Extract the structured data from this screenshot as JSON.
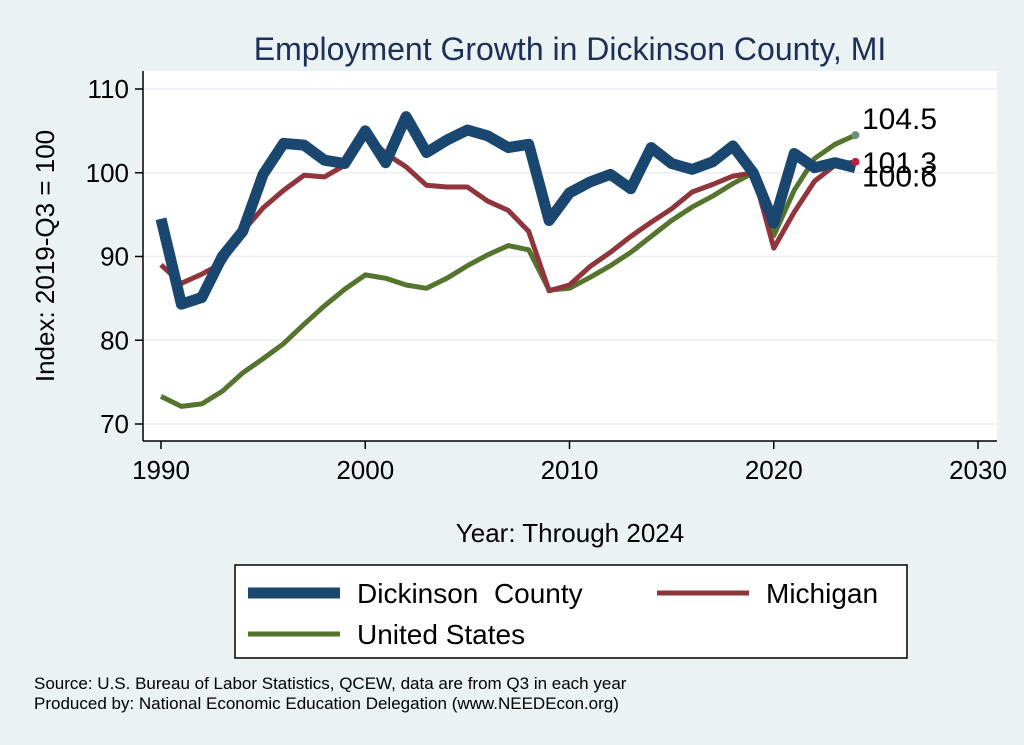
{
  "chart_data": {
    "type": "line",
    "title": "Employment Growth in Dickinson County, MI",
    "xlabel": "Year: Through 2024",
    "ylabel": "Index: 2019-Q3 = 100",
    "xlim": [
      1990,
      2030
    ],
    "ylim": [
      70,
      110
    ],
    "xticks": [
      1990,
      2000,
      2010,
      2020,
      2030
    ],
    "yticks": [
      70,
      80,
      90,
      100,
      110
    ],
    "grid": true,
    "legend_position": "bottom",
    "x": [
      1990,
      1991,
      1992,
      1993,
      1994,
      1995,
      1996,
      1997,
      1998,
      1999,
      2000,
      2001,
      2002,
      2003,
      2004,
      2005,
      2006,
      2007,
      2008,
      2009,
      2010,
      2011,
      2012,
      2013,
      2014,
      2015,
      2016,
      2017,
      2018,
      2019,
      2020,
      2021,
      2022,
      2023,
      2024
    ],
    "series": [
      {
        "name": "Dickinson  County",
        "color": "#1a476f",
        "values": [
          94.5,
          84.3,
          85.1,
          90.0,
          93.0,
          99.8,
          103.5,
          103.3,
          101.5,
          101.1,
          105.0,
          101.2,
          106.7,
          102.4,
          103.9,
          105.1,
          104.4,
          103.0,
          103.4,
          94.3,
          97.6,
          98.9,
          99.8,
          98.1,
          103.0,
          101.1,
          100.4,
          101.3,
          103.2,
          100.0,
          94.0,
          102.3,
          100.6,
          101.2,
          100.6
        ],
        "end_label": "100.6"
      },
      {
        "name": "Michigan",
        "color": "#90353b",
        "values": [
          89.0,
          86.8,
          87.9,
          89.2,
          93.0,
          95.8,
          97.9,
          99.7,
          99.5,
          100.9,
          104.7,
          102.3,
          100.7,
          98.5,
          98.3,
          98.3,
          96.6,
          95.5,
          93.0,
          85.9,
          86.6,
          88.8,
          90.5,
          92.4,
          94.1,
          95.7,
          97.7,
          98.6,
          99.6,
          100.0,
          91.0,
          95.3,
          99.0,
          100.9,
          101.3
        ],
        "end_label": "101.3"
      },
      {
        "name": "United States",
        "color": "#55752f",
        "values": [
          73.3,
          72.1,
          72.4,
          73.9,
          76.1,
          77.8,
          79.6,
          81.9,
          84.1,
          86.1,
          87.8,
          87.4,
          86.6,
          86.2,
          87.4,
          88.9,
          90.2,
          91.3,
          90.8,
          86.0,
          86.2,
          87.5,
          88.9,
          90.5,
          92.4,
          94.3,
          95.9,
          97.2,
          98.7,
          100.0,
          92.5,
          97.9,
          101.7,
          103.4,
          104.5
        ],
        "end_label": "104.5"
      }
    ]
  },
  "source_note": "Source: U.S. Bureau of Labor Statistics, QCEW, data are from Q3 in each year",
  "producer_note": "Produced by: National Economic Education Delegation (www.NEEDEcon.org)"
}
